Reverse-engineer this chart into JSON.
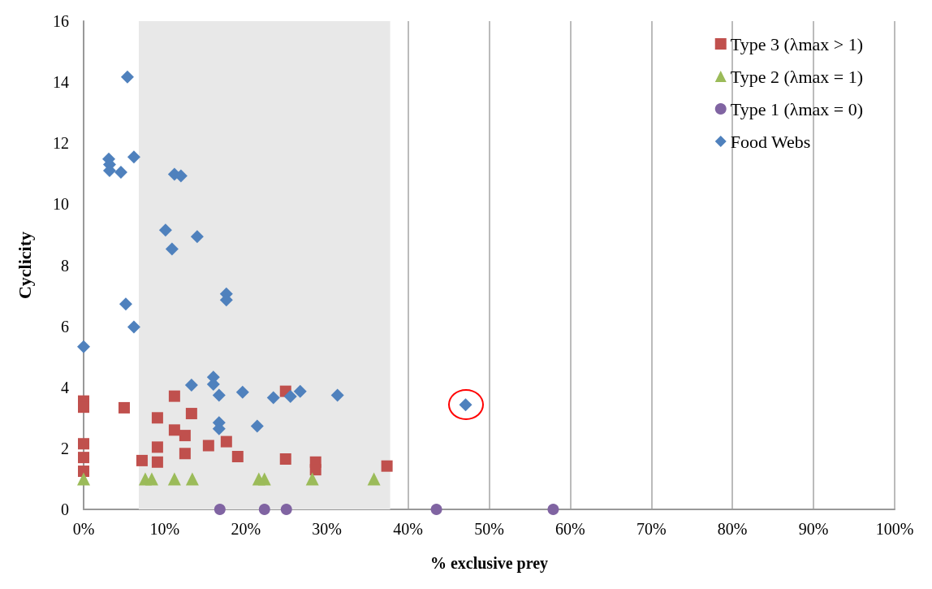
{
  "chart_data": {
    "type": "scatter",
    "xlabel": "% exclusive prey",
    "ylabel": "Cyclicity",
    "xlim": [
      0,
      100
    ],
    "ylim": [
      0,
      16
    ],
    "xticks": [
      {
        "value": 0,
        "label": "0%"
      },
      {
        "value": 10,
        "label": "10%"
      },
      {
        "value": 20,
        "label": "20%"
      },
      {
        "value": 30,
        "label": "30%"
      },
      {
        "value": 40,
        "label": "40%"
      },
      {
        "value": 50,
        "label": "50%"
      },
      {
        "value": 60,
        "label": "60%"
      },
      {
        "value": 70,
        "label": "70%"
      },
      {
        "value": 80,
        "label": "80%"
      },
      {
        "value": 90,
        "label": "90%"
      },
      {
        "value": 100,
        "label": "100%"
      }
    ],
    "yticks": [
      0,
      2,
      4,
      6,
      8,
      10,
      12,
      14,
      16
    ],
    "grid": "x",
    "legend": "top right",
    "bands": [
      {
        "axis": "x",
        "from": 6.8,
        "to": 37.8,
        "color": "#e8e8e8"
      }
    ],
    "series": [
      {
        "name": "Type 3 (λmax > 1)",
        "color": "#c0504d",
        "marker": "square",
        "x": [
          0,
          0,
          0,
          0,
          0,
          5.0,
          7.2,
          9.1,
          9.1,
          9.1,
          11.2,
          11.2,
          12.5,
          12.5,
          13.3,
          15.4,
          17.6,
          19.0,
          24.9,
          24.9,
          28.6,
          28.6,
          37.4
        ],
        "values": [
          3.55,
          3.35,
          2.15,
          1.7,
          1.25,
          3.33,
          1.6,
          3.0,
          2.04,
          1.55,
          3.71,
          2.6,
          2.42,
          1.83,
          3.14,
          2.09,
          2.22,
          1.73,
          3.87,
          1.65,
          1.55,
          1.3,
          1.42
        ]
      },
      {
        "name": "Type 2 (λmax = 1)",
        "color": "#9bbb59",
        "marker": "triangle",
        "x": [
          0,
          7.6,
          8.4,
          11.2,
          13.4,
          21.6,
          22.3,
          28.2,
          35.8
        ],
        "values": [
          1,
          1,
          1,
          1,
          1,
          1,
          1,
          1,
          1
        ]
      },
      {
        "name": "Type 1 (λmax = 0)",
        "color": "#8064a2",
        "marker": "circle",
        "x": [
          16.8,
          22.3,
          25.0,
          43.5,
          57.9
        ],
        "values": [
          0,
          0,
          0,
          0,
          0
        ]
      },
      {
        "name": "Food Webs",
        "color": "#4f81bd",
        "marker": "diamond",
        "x": [
          0,
          5.4,
          3.1,
          3.2,
          3.2,
          4.6,
          6.2,
          11.2,
          12.0,
          10.1,
          10.9,
          14.0,
          17.6,
          17.6,
          5.2,
          6.2,
          16.0,
          16.0,
          16.7,
          13.3,
          19.6,
          23.4,
          25.5,
          26.7,
          31.3,
          16.7,
          16.7,
          21.4,
          47.1
        ],
        "values": [
          5.33,
          14.17,
          11.48,
          11.3,
          11.1,
          11.05,
          11.55,
          10.98,
          10.93,
          9.15,
          8.53,
          8.94,
          7.06,
          6.86,
          6.73,
          5.98,
          4.33,
          4.1,
          3.74,
          4.07,
          3.84,
          3.66,
          3.7,
          3.87,
          3.74,
          2.84,
          2.64,
          2.73,
          3.43
        ]
      }
    ]
  }
}
